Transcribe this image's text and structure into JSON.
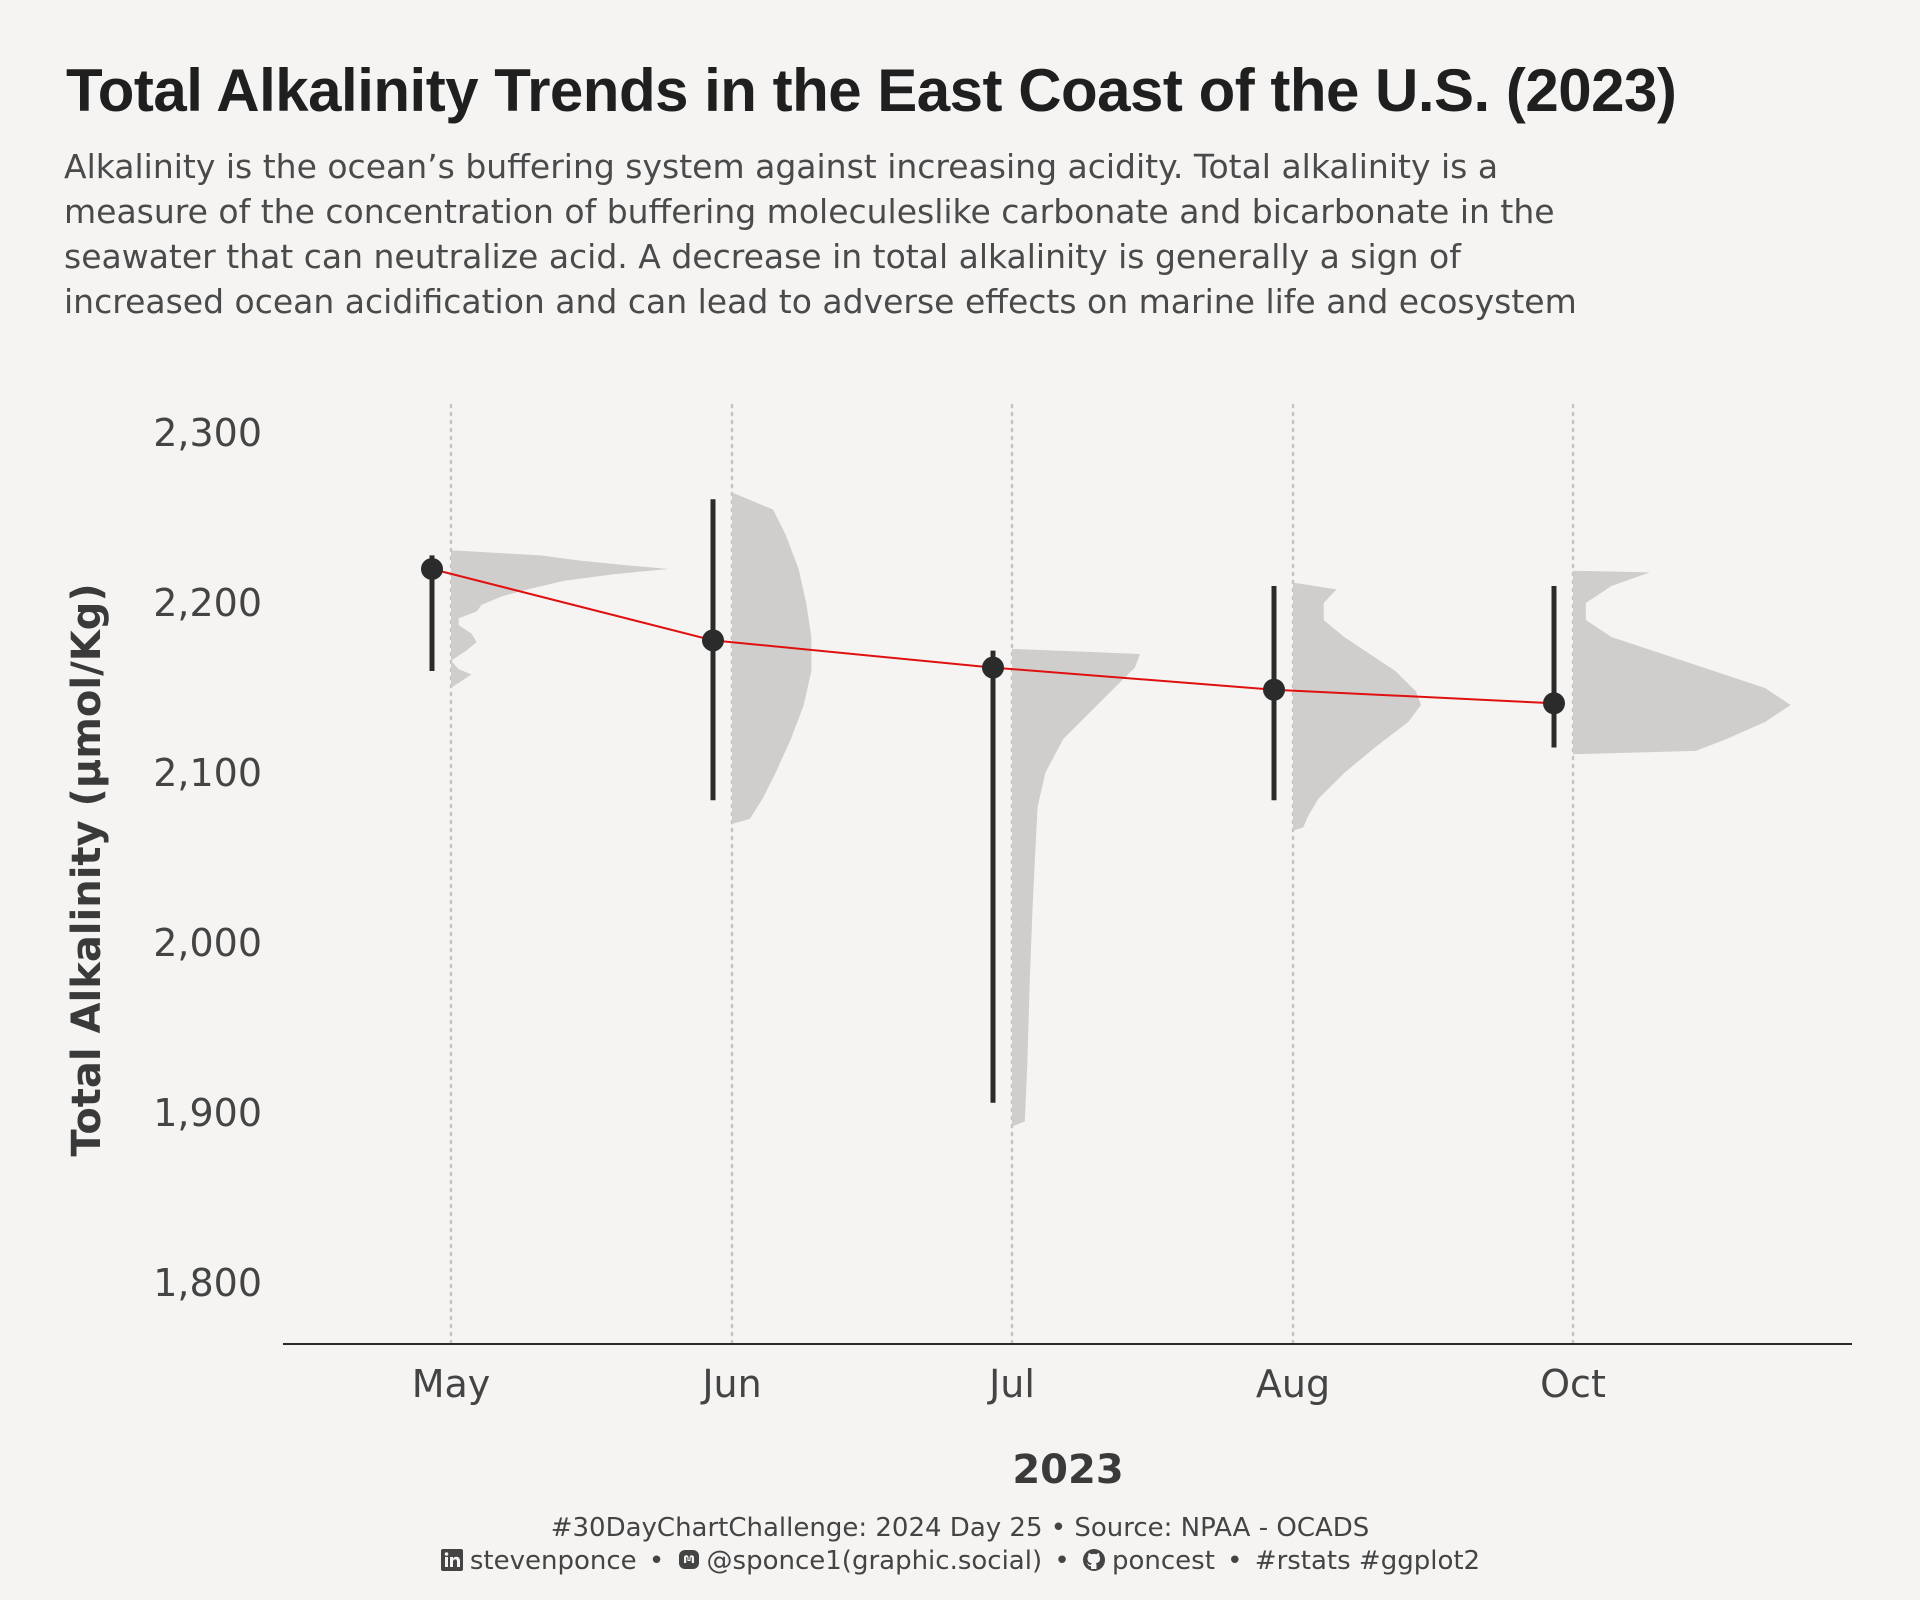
{
  "title": "Total Alkalinity Trends in the East Coast of the U.S. (2023)",
  "subtitle_lines": [
    "Alkalinity is the ocean’s buffering system against increasing acidity. Total alkalinity is a",
    "measure of the concentration of buffering moleculeslike carbonate and bicarbonate in the",
    "seawater that can neutralize acid. A decrease in total alkalinity is generally a sign of",
    "increased ocean acidification and can lead to adverse effects on marine life and ecosystem"
  ],
  "caption": {
    "line1": "#30DayChartChallenge:  2024 Day 25 • Source: NPAA - OCADS",
    "linkedin": "stevenponce",
    "mastodon": "@sponce1(graphic.social)",
    "github": "poncest",
    "tags": "#rstats #ggplot2",
    "bullet": "•",
    "linkedin_icon": "linkedin-icon",
    "mastodon_icon": "mastodon-icon",
    "github_icon": "github-icon"
  },
  "chart_data": {
    "type": "raincloud",
    "xlabel": "2023",
    "ylabel": "Total Alkalinity (μmol/Kg)",
    "ylim": [
      1775,
      2325
    ],
    "yticks": [
      1800,
      1900,
      2000,
      2100,
      2200,
      2300
    ],
    "ytick_labels": [
      "1,800",
      "1,900",
      "2,000",
      "2,100",
      "2,200",
      "2,300"
    ],
    "months": [
      "May",
      "Jun",
      "Jul",
      "Aug",
      "Oct"
    ],
    "mean": [
      2220,
      2178,
      2162,
      2149,
      2141
    ],
    "range_low": [
      2160,
      2084,
      1906,
      2084,
      2115
    ],
    "range_high": [
      2228,
      2261,
      2172,
      2210,
      2210
    ],
    "density": [
      [
        [
          2150,
          0.0
        ],
        [
          2152,
          0.02
        ],
        [
          2155,
          0.05
        ],
        [
          2158,
          0.08
        ],
        [
          2161,
          0.03
        ],
        [
          2166,
          0.0
        ],
        [
          2172,
          0.06
        ],
        [
          2177,
          0.1
        ],
        [
          2182,
          0.08
        ],
        [
          2187,
          0.03
        ],
        [
          2191,
          0.03
        ],
        [
          2195,
          0.1
        ],
        [
          2199,
          0.12
        ],
        [
          2204,
          0.2
        ],
        [
          2208,
          0.3
        ],
        [
          2213,
          0.44
        ],
        [
          2217,
          0.64
        ],
        [
          2220,
          0.85
        ],
        [
          2222,
          0.7
        ],
        [
          2225,
          0.5
        ],
        [
          2228,
          0.35
        ],
        [
          2231,
          0.0
        ]
      ],
      [
        [
          2070,
          0.0
        ],
        [
          2073,
          0.07
        ],
        [
          2085,
          0.12
        ],
        [
          2100,
          0.17
        ],
        [
          2120,
          0.23
        ],
        [
          2140,
          0.28
        ],
        [
          2160,
          0.31
        ],
        [
          2180,
          0.31
        ],
        [
          2200,
          0.29
        ],
        [
          2220,
          0.26
        ],
        [
          2240,
          0.21
        ],
        [
          2255,
          0.16
        ],
        [
          2265,
          0.0
        ]
      ],
      [
        [
          1892,
          0.0
        ],
        [
          1895,
          0.05
        ],
        [
          1930,
          0.06
        ],
        [
          1980,
          0.07
        ],
        [
          2020,
          0.08
        ],
        [
          2050,
          0.09
        ],
        [
          2080,
          0.1
        ],
        [
          2100,
          0.13
        ],
        [
          2120,
          0.2
        ],
        [
          2135,
          0.3
        ],
        [
          2150,
          0.4
        ],
        [
          2162,
          0.48
        ],
        [
          2170,
          0.5
        ],
        [
          2173,
          0.0
        ]
      ],
      [
        [
          2066,
          0.0
        ],
        [
          2068,
          0.04
        ],
        [
          2075,
          0.06
        ],
        [
          2085,
          0.1
        ],
        [
          2100,
          0.2
        ],
        [
          2115,
          0.32
        ],
        [
          2130,
          0.45
        ],
        [
          2140,
          0.5
        ],
        [
          2148,
          0.48
        ],
        [
          2160,
          0.4
        ],
        [
          2170,
          0.3
        ],
        [
          2180,
          0.2
        ],
        [
          2190,
          0.12
        ],
        [
          2200,
          0.12
        ],
        [
          2208,
          0.17
        ],
        [
          2212,
          0.0
        ]
      ],
      [
        [
          2111,
          0.0
        ],
        [
          2113,
          0.48
        ],
        [
          2120,
          0.6
        ],
        [
          2130,
          0.75
        ],
        [
          2140,
          0.85
        ],
        [
          2150,
          0.75
        ],
        [
          2160,
          0.55
        ],
        [
          2170,
          0.35
        ],
        [
          2180,
          0.15
        ],
        [
          2190,
          0.05
        ],
        [
          2200,
          0.05
        ],
        [
          2210,
          0.15
        ],
        [
          2218,
          0.3
        ],
        [
          2219,
          0.0
        ]
      ]
    ],
    "grid": "vertical dotted at months",
    "trend_line_color": "#e01010",
    "density_color": "#cfcecd",
    "point_color": "#2b2b2b"
  }
}
